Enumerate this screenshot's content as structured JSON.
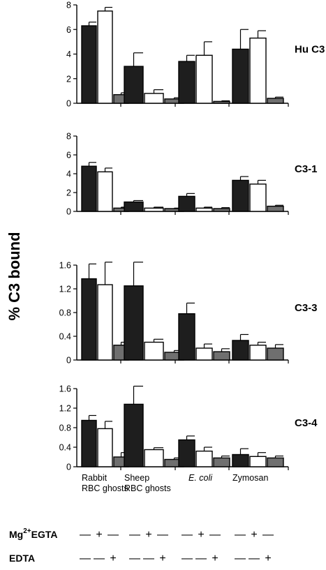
{
  "y_axis_label": "% C3 bound",
  "colors": {
    "bar1": "#1e1e1e",
    "bar2": "#ffffff",
    "bar3": "#6f6f6f",
    "axis": "#000000"
  },
  "chart_data": [
    {
      "type": "bar",
      "panel_label": "Hu C3",
      "ylim": [
        0,
        8
      ],
      "yticks": [
        "0",
        "2",
        "4",
        "6",
        "8"
      ],
      "categories": [
        "Rabbit RBC ghosts",
        "Sheep RBC ghosts",
        "E. coli",
        "Zymosan"
      ],
      "series": [
        {
          "values": [
            6.3,
            3.0,
            3.4,
            4.4
          ],
          "errors": [
            0.3,
            1.1,
            0.5,
            1.6
          ]
        },
        {
          "values": [
            7.5,
            0.8,
            3.9,
            5.3
          ],
          "errors": [
            0.3,
            0.3,
            1.1,
            0.6
          ]
        },
        {
          "values": [
            0.7,
            0.35,
            0.15,
            0.4
          ],
          "errors": [
            0.15,
            0.1,
            0.05,
            0.1
          ]
        }
      ]
    },
    {
      "type": "bar",
      "panel_label": "C3-1",
      "ylim": [
        0,
        8
      ],
      "yticks": [
        "0",
        "2",
        "4",
        "6",
        "8"
      ],
      "categories": [
        "Rabbit RBC ghosts",
        "Sheep RBC ghosts",
        "E. coli",
        "Zymosan"
      ],
      "series": [
        {
          "values": [
            4.8,
            1.0,
            1.6,
            3.3
          ],
          "errors": [
            0.4,
            0.15,
            0.3,
            0.4
          ]
        },
        {
          "values": [
            4.2,
            0.35,
            0.35,
            2.9
          ],
          "errors": [
            0.4,
            0.1,
            0.1,
            0.4
          ]
        },
        {
          "values": [
            0.35,
            0.3,
            0.3,
            0.55
          ],
          "errors": [
            0.1,
            0.05,
            0.1,
            0.1
          ]
        }
      ]
    },
    {
      "type": "bar",
      "panel_label": "C3-3",
      "ylim": [
        0,
        1.6
      ],
      "yticks": [
        "0",
        "0.4",
        "0.8",
        "1.2",
        "1.6"
      ],
      "categories": [
        "Rabbit RBC ghosts",
        "Sheep RBC ghosts",
        "E. coli",
        "Zymosan"
      ],
      "series": [
        {
          "values": [
            1.37,
            1.25,
            0.78,
            0.33
          ],
          "errors": [
            0.25,
            0.4,
            0.18,
            0.1
          ]
        },
        {
          "values": [
            1.27,
            0.3,
            0.2,
            0.25
          ],
          "errors": [
            0.38,
            0.05,
            0.07,
            0.05
          ]
        },
        {
          "values": [
            0.25,
            0.13,
            0.14,
            0.2
          ],
          "errors": [
            0.05,
            0.03,
            0.05,
            0.06
          ]
        }
      ]
    },
    {
      "type": "bar",
      "panel_label": "C3-4",
      "ylim": [
        0,
        1.6
      ],
      "yticks": [
        "0",
        "0.4",
        "0.8",
        "1.2",
        "1.6"
      ],
      "categories": [
        "Rabbit RBC ghosts",
        "Sheep RBC ghosts",
        "E. coli",
        "Zymosan"
      ],
      "series": [
        {
          "values": [
            0.95,
            1.28,
            0.55,
            0.25
          ],
          "errors": [
            0.1,
            0.37,
            0.08,
            0.12
          ]
        },
        {
          "values": [
            0.78,
            0.35,
            0.32,
            0.21
          ],
          "errors": [
            0.15,
            0.04,
            0.08,
            0.08
          ]
        },
        {
          "values": [
            0.2,
            0.15,
            0.18,
            0.18
          ],
          "errors": [
            0.09,
            0.03,
            0.04,
            0.04
          ]
        }
      ]
    }
  ],
  "category_labels": [
    {
      "line1": "Rabbit",
      "line2": "RBC ghosts",
      "italic": false
    },
    {
      "line1": "Sheep",
      "line2": "RBC ghosts",
      "italic": false
    },
    {
      "line1": "E. coli",
      "line2": "",
      "italic": true
    },
    {
      "line1": "Zymosan",
      "line2": "",
      "italic": false
    }
  ],
  "conditions": [
    {
      "label_main": "Mg",
      "label_sup": "2+",
      "label_rest": "EGTA",
      "signs": [
        "—",
        "+",
        "—"
      ]
    },
    {
      "label_main": "EDTA",
      "label_sup": "",
      "label_rest": "",
      "signs": [
        "—",
        "—",
        "+"
      ]
    }
  ]
}
